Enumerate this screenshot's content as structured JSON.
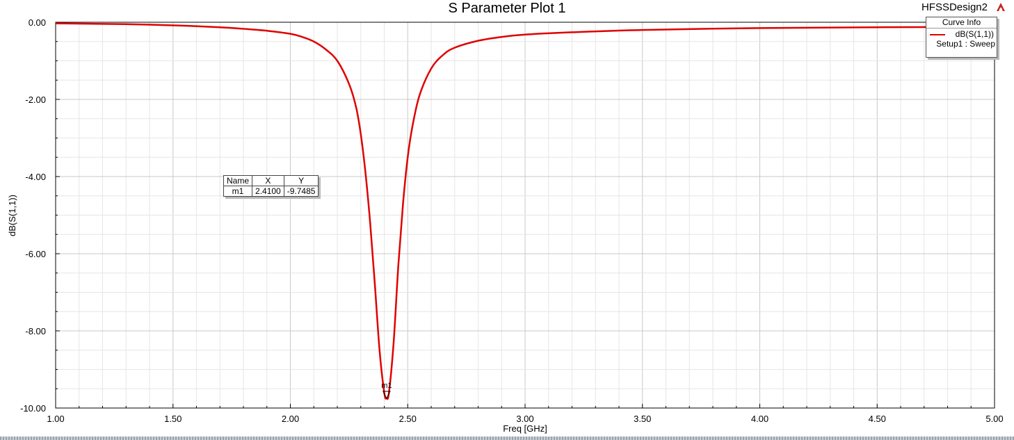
{
  "header": {
    "plot_title": "S Parameter Plot 1",
    "design_name": "HFSSDesign2",
    "logo_icon": "ansys-logo-icon"
  },
  "legend": {
    "title": "Curve Info",
    "series_label": "dB(S(1,1))",
    "setup_label": "Setup1 : Sweep"
  },
  "marker_table": {
    "headers": [
      "Name",
      "X",
      "Y"
    ],
    "rows": [
      [
        "m1",
        "2.4100",
        "-9.7485"
      ]
    ]
  },
  "colors": {
    "curve": "#e00000",
    "grid_major": "#c8c8c8",
    "grid_minor": "#e6e6e6",
    "axis": "#000000"
  },
  "chart_data": {
    "type": "line",
    "title": "S Parameter Plot 1",
    "xlabel": "Freq [GHz]",
    "ylabel": "dB(S(1,1))",
    "xlim": [
      1.0,
      5.0
    ],
    "ylim": [
      -10.0,
      0.0
    ],
    "x_ticks": [
      "1.00",
      "1.50",
      "2.00",
      "2.50",
      "3.00",
      "3.50",
      "4.00",
      "4.50",
      "5.00"
    ],
    "y_ticks": [
      "0.00",
      "-2.00",
      "-4.00",
      "-6.00",
      "-8.00",
      "-10.00"
    ],
    "grid": true,
    "legend_position": "top-right",
    "series": [
      {
        "name": "dB(S(1,1))",
        "x": [
          1.0,
          1.3,
          1.5,
          1.7,
          1.8,
          1.9,
          2.0,
          2.05,
          2.1,
          2.15,
          2.2,
          2.25,
          2.28,
          2.3,
          2.32,
          2.34,
          2.36,
          2.38,
          2.4,
          2.41,
          2.42,
          2.44,
          2.46,
          2.48,
          2.5,
          2.52,
          2.55,
          2.6,
          2.65,
          2.7,
          2.8,
          2.9,
          3.0,
          3.2,
          3.5,
          4.0,
          4.5,
          5.0
        ],
        "y": [
          -0.03,
          -0.05,
          -0.08,
          -0.13,
          -0.17,
          -0.22,
          -0.3,
          -0.38,
          -0.5,
          -0.7,
          -1.0,
          -1.6,
          -2.2,
          -2.9,
          -3.9,
          -5.2,
          -6.8,
          -8.5,
          -9.6,
          -9.7485,
          -9.6,
          -8.3,
          -6.3,
          -4.7,
          -3.5,
          -2.7,
          -1.9,
          -1.2,
          -0.85,
          -0.66,
          -0.48,
          -0.38,
          -0.32,
          -0.26,
          -0.2,
          -0.15,
          -0.13,
          -0.12
        ]
      }
    ],
    "markers": [
      {
        "name": "m1",
        "x": 2.41,
        "y": -9.7485
      }
    ]
  }
}
